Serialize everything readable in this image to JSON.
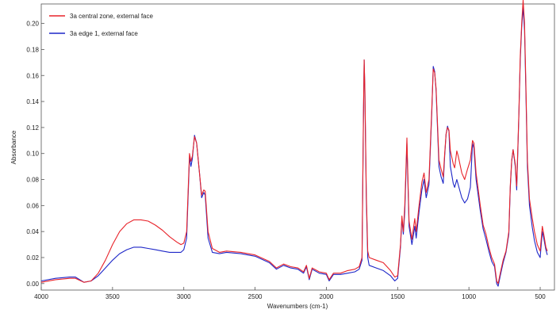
{
  "chart_data": {
    "type": "line",
    "title": "",
    "xlabel": "Wavenumbers (cm-1)",
    "ylabel": "Absorbance",
    "xlim": [
      4000,
      400
    ],
    "ylim": [
      -0.005,
      0.215
    ],
    "x_reversed": true,
    "grid": false,
    "legend_position": "top-left",
    "x_ticks": [
      4000,
      3500,
      3000,
      2500,
      2000,
      1500,
      1000,
      500
    ],
    "y_ticks": [
      0.0,
      0.02,
      0.04,
      0.06,
      0.08,
      0.1,
      0.12,
      0.14,
      0.16,
      0.18,
      0.2
    ],
    "series": [
      {
        "name": "3a central zone, external face",
        "color": "#e8232a",
        "points": [
          [
            4000,
            0.001
          ],
          [
            3900,
            0.003
          ],
          [
            3800,
            0.004
          ],
          [
            3760,
            0.004
          ],
          [
            3700,
            0.001
          ],
          [
            3650,
            0.002
          ],
          [
            3600,
            0.008
          ],
          [
            3550,
            0.018
          ],
          [
            3500,
            0.03
          ],
          [
            3450,
            0.04
          ],
          [
            3400,
            0.046
          ],
          [
            3350,
            0.049
          ],
          [
            3300,
            0.049
          ],
          [
            3250,
            0.048
          ],
          [
            3200,
            0.045
          ],
          [
            3150,
            0.041
          ],
          [
            3100,
            0.036
          ],
          [
            3050,
            0.032
          ],
          [
            3020,
            0.03
          ],
          [
            3000,
            0.031
          ],
          [
            2980,
            0.04
          ],
          [
            2960,
            0.1
          ],
          [
            2950,
            0.094
          ],
          [
            2940,
            0.098
          ],
          [
            2925,
            0.113
          ],
          [
            2910,
            0.108
          ],
          [
            2890,
            0.085
          ],
          [
            2875,
            0.068
          ],
          [
            2860,
            0.072
          ],
          [
            2850,
            0.071
          ],
          [
            2830,
            0.04
          ],
          [
            2800,
            0.027
          ],
          [
            2750,
            0.024
          ],
          [
            2700,
            0.025
          ],
          [
            2600,
            0.024
          ],
          [
            2500,
            0.022
          ],
          [
            2400,
            0.017
          ],
          [
            2350,
            0.012
          ],
          [
            2300,
            0.015
          ],
          [
            2250,
            0.013
          ],
          [
            2200,
            0.012
          ],
          [
            2160,
            0.009
          ],
          [
            2140,
            0.014
          ],
          [
            2120,
            0.004
          ],
          [
            2100,
            0.012
          ],
          [
            2050,
            0.009
          ],
          [
            2000,
            0.008
          ],
          [
            1980,
            0.003
          ],
          [
            1950,
            0.008
          ],
          [
            1900,
            0.008
          ],
          [
            1850,
            0.01
          ],
          [
            1800,
            0.011
          ],
          [
            1770,
            0.013
          ],
          [
            1750,
            0.02
          ],
          [
            1740,
            0.13
          ],
          [
            1735,
            0.172
          ],
          [
            1730,
            0.15
          ],
          [
            1720,
            0.07
          ],
          [
            1710,
            0.025
          ],
          [
            1700,
            0.02
          ],
          [
            1650,
            0.018
          ],
          [
            1600,
            0.016
          ],
          [
            1550,
            0.01
          ],
          [
            1520,
            0.005
          ],
          [
            1500,
            0.006
          ],
          [
            1480,
            0.03
          ],
          [
            1470,
            0.052
          ],
          [
            1460,
            0.04
          ],
          [
            1450,
            0.06
          ],
          [
            1435,
            0.112
          ],
          [
            1420,
            0.048
          ],
          [
            1400,
            0.034
          ],
          [
            1380,
            0.05
          ],
          [
            1370,
            0.04
          ],
          [
            1350,
            0.06
          ],
          [
            1330,
            0.078
          ],
          [
            1315,
            0.085
          ],
          [
            1300,
            0.07
          ],
          [
            1280,
            0.08
          ],
          [
            1260,
            0.135
          ],
          [
            1250,
            0.165
          ],
          [
            1240,
            0.162
          ],
          [
            1230,
            0.15
          ],
          [
            1210,
            0.095
          ],
          [
            1195,
            0.088
          ],
          [
            1180,
            0.082
          ],
          [
            1170,
            0.1
          ],
          [
            1160,
            0.115
          ],
          [
            1150,
            0.12
          ],
          [
            1140,
            0.118
          ],
          [
            1130,
            0.102
          ],
          [
            1110,
            0.092
          ],
          [
            1100,
            0.089
          ],
          [
            1085,
            0.102
          ],
          [
            1075,
            0.098
          ],
          [
            1050,
            0.085
          ],
          [
            1030,
            0.08
          ],
          [
            1010,
            0.088
          ],
          [
            990,
            0.095
          ],
          [
            975,
            0.11
          ],
          [
            965,
            0.108
          ],
          [
            950,
            0.085
          ],
          [
            920,
            0.06
          ],
          [
            900,
            0.045
          ],
          [
            880,
            0.038
          ],
          [
            860,
            0.028
          ],
          [
            840,
            0.02
          ],
          [
            820,
            0.015
          ],
          [
            805,
            0.002
          ],
          [
            795,
            0.0
          ],
          [
            780,
            0.008
          ],
          [
            760,
            0.018
          ],
          [
            740,
            0.025
          ],
          [
            720,
            0.04
          ],
          [
            710,
            0.075
          ],
          [
            700,
            0.095
          ],
          [
            690,
            0.103
          ],
          [
            675,
            0.092
          ],
          [
            665,
            0.075
          ],
          [
            650,
            0.13
          ],
          [
            640,
            0.175
          ],
          [
            630,
            0.2
          ],
          [
            620,
            0.218
          ],
          [
            610,
            0.2
          ],
          [
            600,
            0.15
          ],
          [
            590,
            0.095
          ],
          [
            575,
            0.065
          ],
          [
            555,
            0.05
          ],
          [
            540,
            0.04
          ],
          [
            520,
            0.03
          ],
          [
            500,
            0.025
          ],
          [
            485,
            0.044
          ],
          [
            475,
            0.038
          ],
          [
            460,
            0.028
          ],
          [
            450,
            0.025
          ]
        ]
      },
      {
        "name": "3a edge 1, external face",
        "color": "#1d26c8",
        "points": [
          [
            4000,
            0.002
          ],
          [
            3900,
            0.004
          ],
          [
            3800,
            0.005
          ],
          [
            3760,
            0.005
          ],
          [
            3700,
            0.001
          ],
          [
            3650,
            0.002
          ],
          [
            3600,
            0.006
          ],
          [
            3550,
            0.012
          ],
          [
            3500,
            0.018
          ],
          [
            3450,
            0.023
          ],
          [
            3400,
            0.026
          ],
          [
            3350,
            0.028
          ],
          [
            3300,
            0.028
          ],
          [
            3250,
            0.027
          ],
          [
            3200,
            0.026
          ],
          [
            3150,
            0.025
          ],
          [
            3100,
            0.024
          ],
          [
            3050,
            0.024
          ],
          [
            3020,
            0.024
          ],
          [
            3000,
            0.026
          ],
          [
            2980,
            0.035
          ],
          [
            2960,
            0.097
          ],
          [
            2950,
            0.09
          ],
          [
            2940,
            0.096
          ],
          [
            2925,
            0.114
          ],
          [
            2910,
            0.108
          ],
          [
            2890,
            0.085
          ],
          [
            2875,
            0.066
          ],
          [
            2860,
            0.07
          ],
          [
            2850,
            0.068
          ],
          [
            2830,
            0.035
          ],
          [
            2800,
            0.024
          ],
          [
            2750,
            0.023
          ],
          [
            2700,
            0.024
          ],
          [
            2600,
            0.023
          ],
          [
            2500,
            0.021
          ],
          [
            2400,
            0.016
          ],
          [
            2350,
            0.011
          ],
          [
            2300,
            0.014
          ],
          [
            2250,
            0.012
          ],
          [
            2200,
            0.011
          ],
          [
            2160,
            0.008
          ],
          [
            2140,
            0.013
          ],
          [
            2120,
            0.003
          ],
          [
            2100,
            0.011
          ],
          [
            2050,
            0.008
          ],
          [
            2000,
            0.007
          ],
          [
            1980,
            0.002
          ],
          [
            1950,
            0.007
          ],
          [
            1900,
            0.007
          ],
          [
            1850,
            0.008
          ],
          [
            1800,
            0.009
          ],
          [
            1770,
            0.011
          ],
          [
            1750,
            0.018
          ],
          [
            1740,
            0.128
          ],
          [
            1735,
            0.172
          ],
          [
            1730,
            0.148
          ],
          [
            1720,
            0.065
          ],
          [
            1710,
            0.02
          ],
          [
            1700,
            0.014
          ],
          [
            1650,
            0.012
          ],
          [
            1600,
            0.01
          ],
          [
            1550,
            0.006
          ],
          [
            1520,
            0.002
          ],
          [
            1500,
            0.004
          ],
          [
            1480,
            0.028
          ],
          [
            1470,
            0.05
          ],
          [
            1460,
            0.038
          ],
          [
            1450,
            0.055
          ],
          [
            1435,
            0.108
          ],
          [
            1420,
            0.044
          ],
          [
            1400,
            0.03
          ],
          [
            1380,
            0.044
          ],
          [
            1370,
            0.035
          ],
          [
            1350,
            0.055
          ],
          [
            1330,
            0.072
          ],
          [
            1315,
            0.08
          ],
          [
            1300,
            0.066
          ],
          [
            1280,
            0.076
          ],
          [
            1260,
            0.132
          ],
          [
            1250,
            0.167
          ],
          [
            1240,
            0.163
          ],
          [
            1230,
            0.148
          ],
          [
            1210,
            0.09
          ],
          [
            1195,
            0.082
          ],
          [
            1180,
            0.077
          ],
          [
            1170,
            0.098
          ],
          [
            1160,
            0.115
          ],
          [
            1150,
            0.121
          ],
          [
            1140,
            0.117
          ],
          [
            1130,
            0.09
          ],
          [
            1110,
            0.077
          ],
          [
            1100,
            0.074
          ],
          [
            1085,
            0.08
          ],
          [
            1075,
            0.076
          ],
          [
            1050,
            0.066
          ],
          [
            1030,
            0.062
          ],
          [
            1010,
            0.065
          ],
          [
            990,
            0.074
          ],
          [
            975,
            0.108
          ],
          [
            965,
            0.104
          ],
          [
            950,
            0.08
          ],
          [
            920,
            0.056
          ],
          [
            900,
            0.042
          ],
          [
            880,
            0.034
          ],
          [
            860,
            0.025
          ],
          [
            840,
            0.017
          ],
          [
            820,
            0.013
          ],
          [
            805,
            0.0
          ],
          [
            795,
            -0.002
          ],
          [
            780,
            0.006
          ],
          [
            760,
            0.016
          ],
          [
            740,
            0.024
          ],
          [
            720,
            0.038
          ],
          [
            710,
            0.073
          ],
          [
            700,
            0.094
          ],
          [
            690,
            0.103
          ],
          [
            675,
            0.09
          ],
          [
            665,
            0.072
          ],
          [
            650,
            0.128
          ],
          [
            640,
            0.172
          ],
          [
            630,
            0.197
          ],
          [
            620,
            0.212
          ],
          [
            610,
            0.195
          ],
          [
            600,
            0.145
          ],
          [
            590,
            0.09
          ],
          [
            575,
            0.06
          ],
          [
            555,
            0.043
          ],
          [
            540,
            0.033
          ],
          [
            520,
            0.024
          ],
          [
            500,
            0.02
          ],
          [
            485,
            0.04
          ],
          [
            475,
            0.035
          ],
          [
            460,
            0.026
          ],
          [
            450,
            0.022
          ]
        ]
      }
    ]
  }
}
